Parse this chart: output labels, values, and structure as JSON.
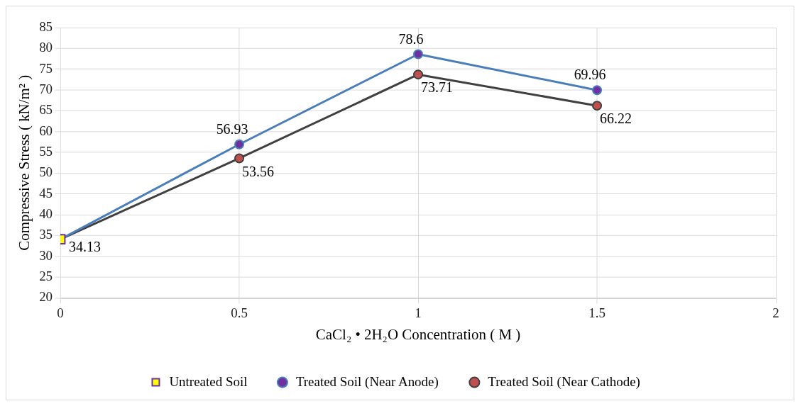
{
  "chart_data": {
    "type": "line",
    "xlabel": "CaCl₂ • 2H₂O Concentration ( M )",
    "ylabel": "Compressive Stress ( kN/m² )",
    "xlim": [
      0,
      2
    ],
    "xticks": [
      0,
      0.5,
      1,
      1.5,
      2
    ],
    "ylim": [
      20,
      85
    ],
    "yticks": [
      20,
      25,
      30,
      35,
      40,
      45,
      50,
      55,
      60,
      65,
      70,
      75,
      80,
      85
    ],
    "grid": true,
    "legend": "bottom",
    "line_style": "solid",
    "series": [
      {
        "name": "Untreated Soil",
        "type": "scatter",
        "marker": "square",
        "color": "#ffff00",
        "x": [
          0
        ],
        "values": [
          34.13
        ],
        "value_labels": [
          "34.13"
        ]
      },
      {
        "name": "Treated Soil (Near Anode)",
        "marker": "circle",
        "color": "#4a7ebb",
        "colors": [
          "#7030a0",
          "#7030a0",
          "#7030a0",
          "#7030a0"
        ],
        "x": [
          0,
          0.5,
          1,
          1.5
        ],
        "values": [
          34.13,
          56.93,
          78.6,
          69.96
        ],
        "value_labels": [
          null,
          "56.93",
          "78.6",
          "69.96"
        ]
      },
      {
        "name": "Treated Soil (Near Cathode)",
        "marker": "circle",
        "color": "#404040",
        "colors": [
          "#c0504d",
          "#c0504d",
          "#c0504d",
          "#c0504d"
        ],
        "x": [
          0,
          0.5,
          1,
          1.5
        ],
        "values": [
          34.13,
          53.56,
          73.71,
          66.22
        ],
        "value_labels": [
          null,
          "53.56",
          "73.71",
          "66.22"
        ]
      }
    ]
  }
}
